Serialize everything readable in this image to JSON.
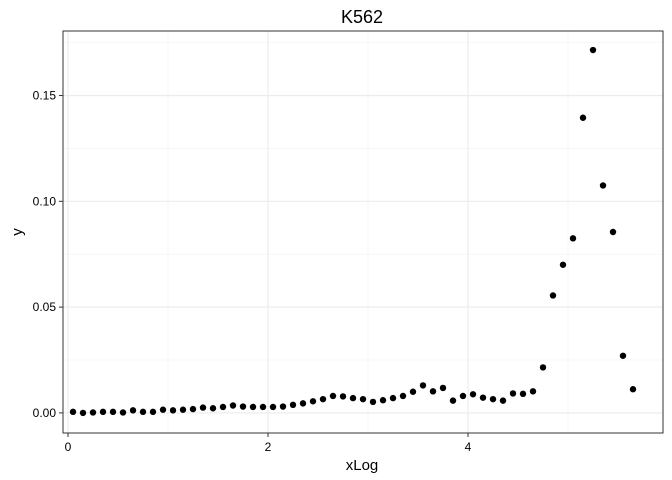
{
  "chart_data": {
    "type": "scatter",
    "title": "K562",
    "xlabel": "xLog",
    "ylabel": "y",
    "xlim": [
      -0.05,
      5.95
    ],
    "ylim": [
      -0.0095,
      0.1805
    ],
    "x_ticks": [
      0,
      2,
      4
    ],
    "x_tick_labels": [
      "0",
      "2",
      "4"
    ],
    "y_ticks": [
      0.0,
      0.05,
      0.1,
      0.15
    ],
    "y_tick_labels": [
      "0.00",
      "0.05",
      "0.10",
      "0.15"
    ],
    "grid": true,
    "point_color": "#000000",
    "x": [
      0.05,
      0.15,
      0.25,
      0.35,
      0.45,
      0.55,
      0.65,
      0.75,
      0.85,
      0.95,
      1.05,
      1.15,
      1.25,
      1.35,
      1.45,
      1.55,
      1.65,
      1.75,
      1.85,
      1.95,
      2.05,
      2.15,
      2.25,
      2.35,
      2.45,
      2.55,
      2.65,
      2.75,
      2.85,
      2.95,
      3.05,
      3.15,
      3.25,
      3.35,
      3.45,
      3.55,
      3.65,
      3.75,
      3.85,
      3.95,
      4.05,
      4.15,
      4.25,
      4.35,
      4.45,
      4.55,
      4.65,
      4.75,
      4.85,
      4.95,
      5.05,
      5.15,
      5.25,
      5.35,
      5.45,
      5.55,
      5.65
    ],
    "y": [
      0.0005,
      0.0,
      0.0002,
      0.0005,
      0.0005,
      0.0002,
      0.0012,
      0.0005,
      0.0005,
      0.0015,
      0.0012,
      0.0015,
      0.0018,
      0.0025,
      0.0022,
      0.0028,
      0.0035,
      0.003,
      0.0028,
      0.0028,
      0.0028,
      0.003,
      0.0038,
      0.0045,
      0.0055,
      0.0065,
      0.008,
      0.0078,
      0.007,
      0.0065,
      0.0052,
      0.006,
      0.007,
      0.008,
      0.01,
      0.013,
      0.0102,
      0.0118,
      0.0058,
      0.008,
      0.0088,
      0.0072,
      0.0065,
      0.0058,
      0.0092,
      0.009,
      0.0102,
      0.0215,
      0.0555,
      0.07,
      0.0825,
      0.1395,
      0.1715,
      0.1075,
      0.0855,
      0.027,
      0.0112
    ]
  }
}
